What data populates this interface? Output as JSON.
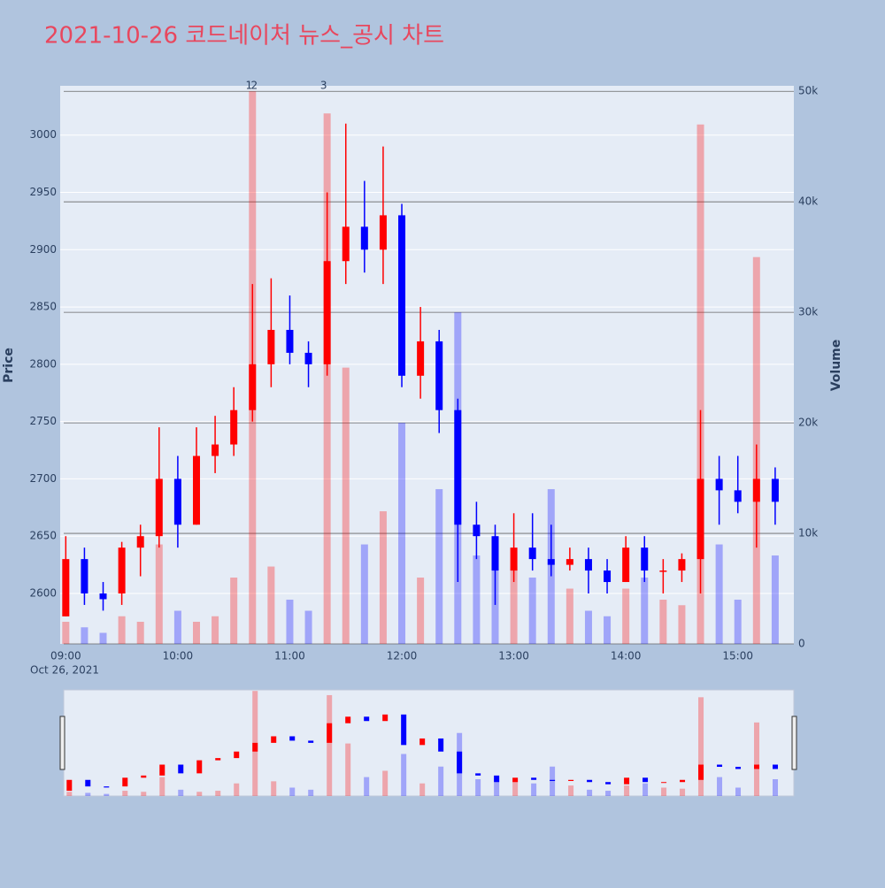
{
  "chart_data": {
    "type": "candlestick",
    "title": "2021-10-26 코드네이처 뉴스_공시 차트",
    "y_label": "Price",
    "y2_label": "Volume",
    "x_sublabel": "Oct 26, 2021",
    "increasing_color": "#ff0000",
    "decreasing_color": "#0000ff",
    "x": [
      "09:00",
      "09:10",
      "09:20",
      "09:30",
      "09:40",
      "09:50",
      "10:00",
      "10:10",
      "10:20",
      "10:30",
      "10:40",
      "10:50",
      "11:00",
      "11:10",
      "11:20",
      "11:30",
      "11:40",
      "11:50",
      "12:00",
      "12:10",
      "12:20",
      "12:30",
      "12:40",
      "12:50",
      "13:00",
      "13:10",
      "13:20",
      "13:30",
      "13:40",
      "13:50",
      "14:00",
      "14:10",
      "14:20",
      "14:30",
      "14:40",
      "14:50",
      "15:00",
      "15:10",
      "15:20"
    ],
    "open": [
      2580,
      2630,
      2600,
      2600,
      2640,
      2650,
      2700,
      2660,
      2720,
      2730,
      2760,
      2800,
      2830,
      2810,
      2800,
      2890,
      2920,
      2900,
      2930,
      2790,
      2820,
      2760,
      2660,
      2650,
      2620,
      2640,
      2630,
      2625,
      2630,
      2620,
      2610,
      2640,
      2620,
      2620,
      2630,
      2700,
      2690,
      2680,
      2700
    ],
    "high": [
      2650,
      2640,
      2610,
      2645,
      2660,
      2745,
      2720,
      2745,
      2755,
      2780,
      2870,
      2875,
      2860,
      2820,
      2950,
      3010,
      2960,
      2990,
      2940,
      2850,
      2830,
      2770,
      2680,
      2660,
      2670,
      2670,
      2660,
      2640,
      2640,
      2630,
      2650,
      2650,
      2630,
      2635,
      2760,
      2720,
      2720,
      2730,
      2710
    ],
    "low": [
      2580,
      2590,
      2585,
      2590,
      2615,
      2640,
      2640,
      2660,
      2705,
      2720,
      2750,
      2780,
      2800,
      2780,
      2790,
      2870,
      2880,
      2870,
      2780,
      2770,
      2740,
      2610,
      2630,
      2590,
      2610,
      2620,
      2615,
      2620,
      2600,
      2600,
      2610,
      2610,
      2600,
      2610,
      2600,
      2660,
      2670,
      2640,
      2660
    ],
    "close": [
      2630,
      2600,
      2595,
      2640,
      2650,
      2700,
      2660,
      2720,
      2730,
      2760,
      2800,
      2830,
      2810,
      2800,
      2890,
      2920,
      2900,
      2930,
      2790,
      2820,
      2760,
      2660,
      2650,
      2620,
      2640,
      2630,
      2625,
      2630,
      2620,
      2610,
      2640,
      2620,
      2620,
      2630,
      2700,
      2690,
      2680,
      2700,
      2680
    ],
    "volume": [
      2000,
      1500,
      1000,
      2500,
      2000,
      9000,
      3000,
      2000,
      2500,
      6000,
      50000,
      7000,
      4000,
      3000,
      48000,
      25000,
      9000,
      12000,
      20000,
      6000,
      14000,
      30000,
      8000,
      9000,
      7000,
      6000,
      14000,
      5000,
      3000,
      2500,
      5000,
      6000,
      4000,
      3500,
      47000,
      9000,
      4000,
      35000,
      8000
    ],
    "ylim": [
      2556,
      3043
    ],
    "yticks": [
      2600,
      2650,
      2700,
      2750,
      2800,
      2850,
      2900,
      2950,
      3000
    ],
    "y2lim": [
      0,
      50500
    ],
    "y2ticks": [
      0,
      {
        "value": 10000,
        "label": "10k"
      },
      {
        "value": 20000,
        "label": "20k"
      },
      {
        "value": 30000,
        "label": "30k"
      },
      {
        "value": 40000,
        "label": "40k"
      },
      {
        "value": 50000,
        "label": "50k"
      }
    ],
    "xlim": [
      "08:57",
      "15:30"
    ],
    "xticks": [
      "09:00",
      "10:00",
      "11:00",
      "12:00",
      "13:00",
      "14:00",
      "15:00"
    ],
    "annotations": [
      {
        "x": "10:40",
        "text": "1"
      },
      {
        "x": "10:40",
        "text": "2"
      },
      {
        "x": "11:20",
        "text": "3"
      }
    ]
  }
}
